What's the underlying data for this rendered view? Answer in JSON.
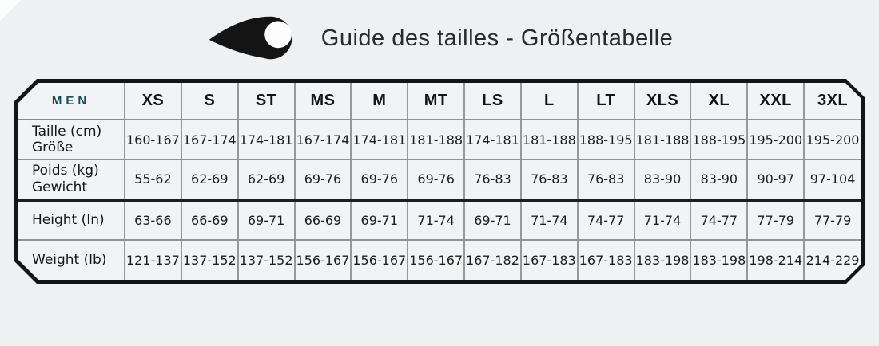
{
  "header": {
    "title": "Guide des tailles - Größentabelle",
    "logo_icon": "comet-teardrop-logo"
  },
  "table": {
    "corner_label": "MEN",
    "sizes": [
      "XS",
      "S",
      "ST",
      "MS",
      "M",
      "MT",
      "LS",
      "L",
      "LT",
      "XLS",
      "XL",
      "XXL",
      "3XL"
    ],
    "rows": [
      {
        "label_lines": [
          "Taille (cm)",
          "Größe"
        ],
        "values": [
          "160-167",
          "167-174",
          "174-181",
          "167-174",
          "174-181",
          "181-188",
          "174-181",
          "181-188",
          "188-195",
          "181-188",
          "188-195",
          "195-200",
          "195-200"
        ]
      },
      {
        "label_lines": [
          "Poids (kg)",
          "Gewicht"
        ],
        "values": [
          "55-62",
          "62-69",
          "62-69",
          "69-76",
          "69-76",
          "69-76",
          "76-83",
          "76-83",
          "76-83",
          "83-90",
          "83-90",
          "90-97",
          "97-104"
        ]
      },
      {
        "label_lines": [
          "Height (In)"
        ],
        "values": [
          "63-66",
          "66-69",
          "69-71",
          "66-69",
          "69-71",
          "71-74",
          "69-71",
          "71-74",
          "74-77",
          "71-74",
          "74-77",
          "77-79",
          "77-79"
        ]
      },
      {
        "label_lines": [
          "Weight (lb)"
        ],
        "values": [
          "121-137",
          "137-152",
          "137-152",
          "156-167",
          "156-167",
          "156-167",
          "167-182",
          "167-183",
          "167-183",
          "183-198",
          "183-198",
          "198-214",
          "214-229"
        ]
      }
    ]
  },
  "colors": {
    "accent_teal": "#124f5c",
    "teal_underline": "#6e949c",
    "frame_border": "#141414",
    "grid_line": "#96999c",
    "thick_divider": "#1d1d1d",
    "page_bg": "#eff0f2",
    "cell_bg": "#f2f3f5"
  },
  "chart_data": {
    "type": "table",
    "title": "Guide des tailles - Größentabelle",
    "group": "MEN",
    "columns": [
      "XS",
      "S",
      "ST",
      "MS",
      "M",
      "MT",
      "LS",
      "L",
      "LT",
      "XLS",
      "XL",
      "XXL",
      "3XL"
    ],
    "rows": [
      {
        "label": "Taille (cm) / Größe",
        "values": [
          "160-167",
          "167-174",
          "174-181",
          "167-174",
          "174-181",
          "181-188",
          "174-181",
          "181-188",
          "188-195",
          "181-188",
          "188-195",
          "195-200",
          "195-200"
        ]
      },
      {
        "label": "Poids (kg) / Gewicht",
        "values": [
          "55-62",
          "62-69",
          "62-69",
          "69-76",
          "69-76",
          "69-76",
          "76-83",
          "76-83",
          "76-83",
          "83-90",
          "83-90",
          "90-97",
          "97-104"
        ]
      },
      {
        "label": "Height (In)",
        "values": [
          "63-66",
          "66-69",
          "69-71",
          "66-69",
          "69-71",
          "71-74",
          "69-71",
          "71-74",
          "74-77",
          "71-74",
          "74-77",
          "77-79",
          "77-79"
        ]
      },
      {
        "label": "Weight (lb)",
        "values": [
          "121-137",
          "137-152",
          "137-152",
          "156-167",
          "156-167",
          "156-167",
          "167-182",
          "167-183",
          "167-183",
          "183-198",
          "183-198",
          "198-214",
          "214-229"
        ]
      }
    ]
  }
}
